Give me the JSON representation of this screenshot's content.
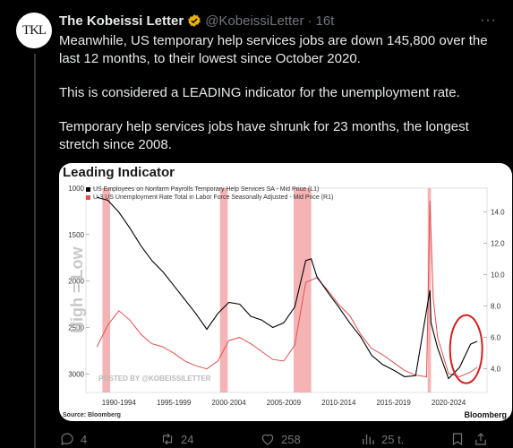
{
  "tweet": {
    "avatar_text": "TKL",
    "name": "The Kobeissi Letter",
    "handle": "@KobeissiLetter",
    "time": "16t",
    "paragraphs": [
      "Meanwhile, US temporary help services jobs are down 145,800 over the last 12 months, to their lowest since October 2020.",
      "This is considered a LEADING indicator for the unemployment rate.",
      "Temporary help services jobs have shrunk for 23 months, the longest stretch since 2008."
    ]
  },
  "chart": {
    "title": "Leading Indicator",
    "legend": [
      "US Employees on Nonfarm Payrolls Temporary Help Services SA - Mid Price (L1)",
      "U-3 US Unemployment Rate Total in Labor Force Seasonally Adjusted - Mid Price (R1)"
    ],
    "watermark": "POSTED BY @KOBEISSILETTER",
    "axis_annotation": "High = Low",
    "source": "Source: Bloomberg",
    "brand": "Bloomberg",
    "colors": {
      "black_series": "#000000",
      "red_series": "#e05050",
      "recession_band": "#f29a9a",
      "circle": "#d22020"
    }
  },
  "chart_data": {
    "type": "line",
    "title": "Leading Indicator",
    "x_ticks": [
      "1990-1994",
      "1995-1999",
      "2000-2004",
      "2005-2009",
      "2010-2014",
      "2015-2019",
      "2020-2024"
    ],
    "y_left_ticks": [
      "1000",
      "1500",
      "2000",
      "2500",
      "3000"
    ],
    "y_left_inverted": true,
    "y_right_ticks": [
      "14.0",
      "12.0",
      "10.0",
      "8.0",
      "6.0",
      "4.0"
    ],
    "series": [
      {
        "name": "US Employees on Nonfarm Payrolls Temporary Help Services SA - Mid Price (L1)",
        "axis": "left",
        "x": [
          1990,
          1991,
          1992,
          1993,
          1994,
          1995,
          1996,
          1997,
          1998,
          1999,
          2000,
          2001,
          2002,
          2003,
          2004,
          2005,
          2006,
          2007,
          2008,
          2009,
          2009.5,
          2010,
          2011,
          2012,
          2013,
          2014,
          2015,
          2016,
          2017,
          2018,
          2019,
          2020.3,
          2020.4,
          2021,
          2022,
          2023,
          2024,
          2024.6
        ],
        "values": [
          1100,
          1130,
          1260,
          1430,
          1620,
          1780,
          1900,
          2050,
          2200,
          2350,
          2520,
          2350,
          2230,
          2250,
          2380,
          2420,
          2500,
          2450,
          2280,
          1780,
          1760,
          1950,
          2120,
          2280,
          2450,
          2600,
          2800,
          2900,
          2960,
          3030,
          3020,
          2100,
          2450,
          2720,
          3050,
          2930,
          2680,
          2650
        ]
      },
      {
        "name": "U-3 US Unemployment Rate Total in Labor Force Seasonally Adjusted - Mid Price (R1)",
        "axis": "right",
        "x": [
          1990,
          1991,
          1992,
          1993,
          1994,
          1995,
          1996,
          1997,
          1998,
          1999,
          2000,
          2001,
          2002,
          2003,
          2004,
          2005,
          2006,
          2007,
          2008,
          2009,
          2010,
          2011,
          2012,
          2013,
          2014,
          2015,
          2016,
          2017,
          2018,
          2019,
          2020,
          2020.3,
          2020.6,
          2021,
          2022,
          2023,
          2024,
          2024.6
        ],
        "values": [
          5.4,
          6.8,
          7.7,
          7.1,
          6.2,
          5.6,
          5.4,
          5.0,
          4.5,
          4.2,
          4.0,
          4.5,
          5.8,
          6.0,
          5.6,
          5.1,
          4.6,
          4.5,
          5.5,
          9.5,
          9.8,
          9.0,
          8.1,
          7.4,
          6.2,
          5.3,
          4.9,
          4.4,
          3.9,
          3.6,
          3.5,
          14.7,
          8.5,
          6.0,
          3.7,
          3.5,
          3.8,
          4.1
        ]
      }
    ],
    "recessions": [
      [
        1990.5,
        1991.2
      ],
      [
        2001.2,
        2001.9
      ],
      [
        2007.9,
        2009.5
      ],
      [
        2020.1,
        2020.4
      ]
    ]
  },
  "actions": {
    "replies": "4",
    "retweets": "24",
    "likes": "258",
    "views": "25 t."
  }
}
